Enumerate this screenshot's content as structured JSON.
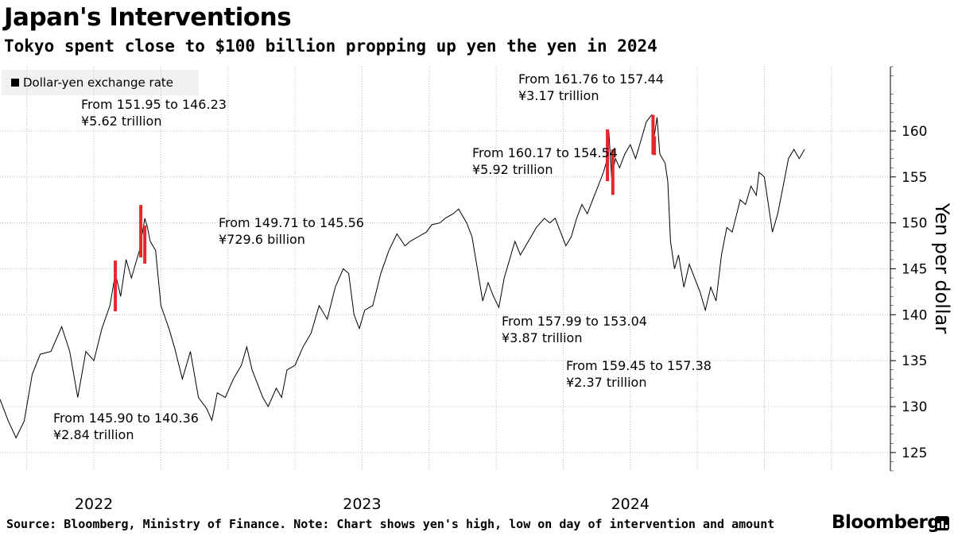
{
  "header": {
    "title": "Japan's Interventions",
    "subtitle": "Tokyo spent close to $100 billion propping up yen the yen in 2024"
  },
  "legend": {
    "label": "Dollar-yen exchange rate"
  },
  "footer": {
    "note": "Source: Bloomberg, Ministry of Finance. Note: Chart shows yen's high, low on day of intervention and amount",
    "brand": "Bloomberg"
  },
  "colors": {
    "series": "#000000",
    "intervention": "#e8262b",
    "grid": "#bbbbbb",
    "legend_bg": "#f1f1f1"
  },
  "chart_data": {
    "type": "line",
    "title": "Japan's Interventions",
    "ylabel": "Yen per dollar",
    "xlabel": "",
    "ylim": [
      123,
      167
    ],
    "yticks": [
      125,
      130,
      135,
      140,
      145,
      150,
      155,
      160
    ],
    "xlim": [
      2021.65,
      2024.97
    ],
    "xticks": [
      {
        "label": "2022",
        "value": 2022.0
      },
      {
        "label": "2023",
        "value": 2023.0
      },
      {
        "label": "2024",
        "value": 2024.0
      }
    ],
    "series": [
      {
        "name": "Dollar-yen exchange rate",
        "points": [
          [
            2021.65,
            130.8
          ],
          [
            2021.68,
            128.5
          ],
          [
            2021.71,
            126.6
          ],
          [
            2021.74,
            128.4
          ],
          [
            2021.77,
            133.5
          ],
          [
            2021.8,
            135.7
          ],
          [
            2021.84,
            136.0
          ],
          [
            2021.88,
            138.7
          ],
          [
            2021.91,
            136.0
          ],
          [
            2021.94,
            131.0
          ],
          [
            2021.97,
            136.0
          ],
          [
            2022.0,
            135.0
          ],
          [
            2022.03,
            138.5
          ],
          [
            2022.06,
            141.0
          ],
          [
            2022.08,
            144.5
          ],
          [
            2022.1,
            142.0
          ],
          [
            2022.12,
            146.0
          ],
          [
            2022.14,
            144.0
          ],
          [
            2022.17,
            147.0
          ],
          [
            2022.19,
            150.5
          ],
          [
            2022.2,
            149.5
          ],
          [
            2022.21,
            148.0
          ],
          [
            2022.23,
            147.0
          ],
          [
            2022.25,
            141.0
          ],
          [
            2022.28,
            138.5
          ],
          [
            2022.3,
            136.5
          ],
          [
            2022.33,
            133.0
          ],
          [
            2022.36,
            136.0
          ],
          [
            2022.39,
            131.0
          ],
          [
            2022.42,
            129.8
          ],
          [
            2022.44,
            128.5
          ],
          [
            2022.46,
            131.5
          ],
          [
            2022.49,
            131.0
          ],
          [
            2022.52,
            133.0
          ],
          [
            2022.55,
            134.5
          ],
          [
            2022.57,
            136.5
          ],
          [
            2022.59,
            134.0
          ],
          [
            2022.63,
            131.0
          ],
          [
            2022.65,
            130.0
          ],
          [
            2022.68,
            132.0
          ],
          [
            2022.7,
            131.0
          ],
          [
            2022.72,
            134.0
          ],
          [
            2022.75,
            134.5
          ],
          [
            2022.78,
            136.5
          ],
          [
            2022.81,
            138.0
          ],
          [
            2022.84,
            141.0
          ],
          [
            2022.87,
            139.5
          ],
          [
            2022.9,
            143.0
          ],
          [
            2022.93,
            145.0
          ],
          [
            2022.95,
            144.5
          ],
          [
            2022.97,
            140.0
          ],
          [
            2022.99,
            138.5
          ],
          [
            2023.01,
            140.5
          ],
          [
            2023.04,
            141.0
          ],
          [
            2023.07,
            144.5
          ],
          [
            2023.1,
            147.0
          ],
          [
            2023.13,
            148.8
          ],
          [
            2023.16,
            147.5
          ],
          [
            2023.18,
            148.0
          ],
          [
            2023.21,
            148.5
          ],
          [
            2023.24,
            149.0
          ],
          [
            2023.26,
            149.8
          ],
          [
            2023.29,
            150.0
          ],
          [
            2023.31,
            150.5
          ],
          [
            2023.34,
            151.0
          ],
          [
            2023.36,
            151.5
          ],
          [
            2023.39,
            150.0
          ],
          [
            2023.41,
            148.5
          ],
          [
            2023.43,
            145.0
          ],
          [
            2023.45,
            141.5
          ],
          [
            2023.47,
            143.5
          ],
          [
            2023.49,
            142.0
          ],
          [
            2023.51,
            140.8
          ],
          [
            2023.53,
            144.0
          ],
          [
            2023.55,
            146.0
          ],
          [
            2023.57,
            148.0
          ],
          [
            2023.59,
            146.5
          ],
          [
            2023.61,
            147.5
          ],
          [
            2023.63,
            148.5
          ],
          [
            2023.65,
            149.5
          ],
          [
            2023.68,
            150.5
          ],
          [
            2023.7,
            150.0
          ],
          [
            2023.72,
            150.5
          ],
          [
            2023.74,
            149.0
          ],
          [
            2023.76,
            147.5
          ],
          [
            2023.78,
            148.5
          ],
          [
            2023.8,
            150.5
          ],
          [
            2023.82,
            152.0
          ],
          [
            2023.84,
            151.0
          ],
          [
            2023.86,
            152.5
          ],
          [
            2023.88,
            154.0
          ],
          [
            2023.9,
            155.5
          ],
          [
            2023.91,
            156.5
          ],
          [
            2023.92,
            160.0
          ],
          [
            2023.93,
            155.0
          ],
          [
            2023.945,
            157.0
          ],
          [
            2023.96,
            156.0
          ],
          [
            2023.98,
            157.5
          ],
          [
            2024.0,
            158.5
          ],
          [
            2024.02,
            157.0
          ],
          [
            2024.04,
            159.0
          ],
          [
            2024.06,
            161.0
          ],
          [
            2024.08,
            161.76
          ],
          [
            2024.09,
            159.5
          ],
          [
            2024.1,
            161.5
          ],
          [
            2024.11,
            157.5
          ],
          [
            2024.13,
            156.5
          ],
          [
            2024.14,
            154.5
          ],
          [
            2024.15,
            148.0
          ],
          [
            2024.165,
            145.0
          ],
          [
            2024.18,
            146.5
          ],
          [
            2024.2,
            143.0
          ],
          [
            2024.22,
            145.5
          ],
          [
            2024.24,
            144.0
          ],
          [
            2024.26,
            142.5
          ],
          [
            2024.28,
            140.5
          ],
          [
            2024.3,
            143.0
          ],
          [
            2024.32,
            141.5
          ],
          [
            2024.34,
            146.5
          ],
          [
            2024.36,
            149.5
          ],
          [
            2024.38,
            149.0
          ],
          [
            2024.41,
            152.5
          ],
          [
            2024.43,
            152.0
          ],
          [
            2024.45,
            154.0
          ],
          [
            2024.47,
            153.0
          ],
          [
            2024.48,
            155.5
          ],
          [
            2024.5,
            155.0
          ],
          [
            2024.52,
            151.0
          ],
          [
            2024.53,
            149.0
          ],
          [
            2024.55,
            151.0
          ],
          [
            2024.57,
            154.0
          ],
          [
            2024.59,
            157.0
          ],
          [
            2024.61,
            158.0
          ],
          [
            2024.63,
            157.0
          ],
          [
            2024.65,
            158.0
          ]
        ]
      }
    ],
    "interventions": [
      {
        "x": 2022.08,
        "high": 145.9,
        "low": 140.36,
        "line1": "From 145.90 to 140.36",
        "line2": "¥2.84 trillion"
      },
      {
        "x": 2022.175,
        "high": 151.95,
        "low": 146.23,
        "line1": "From 151.95 to 146.23",
        "line2": "¥5.62 trillion"
      },
      {
        "x": 2022.19,
        "high": 149.71,
        "low": 145.56,
        "line1": "From 149.71 to 145.56",
        "line2": "¥729.6 billion"
      },
      {
        "x": 2023.915,
        "high": 160.17,
        "low": 154.54,
        "line1": "From 160.17 to 154.54",
        "line2": "¥5.92 trillion"
      },
      {
        "x": 2023.935,
        "high": 157.99,
        "low": 153.04,
        "line1": "From 157.99 to 153.04",
        "line2": "¥3.87 trillion"
      },
      {
        "x": 2024.085,
        "high": 161.76,
        "low": 157.44,
        "line1": "From 161.76 to 157.44",
        "line2": "¥3.17 trillion"
      },
      {
        "x": 2024.09,
        "high": 159.45,
        "low": 157.38,
        "line1": "From 159.45 to 157.38",
        "line2": "¥2.37 trillion"
      }
    ]
  }
}
